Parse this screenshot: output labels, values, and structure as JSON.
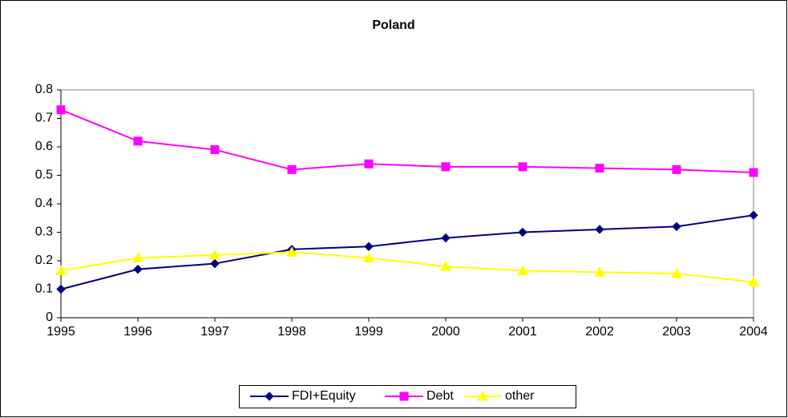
{
  "chart_data": {
    "type": "line",
    "title": "Poland",
    "categories": [
      "1995",
      "1996",
      "1997",
      "1998",
      "1999",
      "2000",
      "2001",
      "2002",
      "2003",
      "2004"
    ],
    "series": [
      {
        "name": "FDI+Equity",
        "color": "#000080",
        "marker": "diamond",
        "values": [
          0.1,
          0.17,
          0.19,
          0.24,
          0.25,
          0.28,
          0.3,
          0.31,
          0.32,
          0.36
        ]
      },
      {
        "name": "Debt",
        "color": "#ff00ff",
        "marker": "square",
        "values": [
          0.73,
          0.62,
          0.59,
          0.52,
          0.54,
          0.53,
          0.53,
          0.525,
          0.52,
          0.51
        ]
      },
      {
        "name": "other",
        "color": "#ffff00",
        "marker": "triangle",
        "values": [
          0.165,
          0.21,
          0.22,
          0.23,
          0.21,
          0.18,
          0.165,
          0.16,
          0.155,
          0.125
        ]
      }
    ],
    "ylim": [
      0,
      0.8
    ],
    "yticks": [
      0,
      0.1,
      0.2,
      0.3,
      0.4,
      0.5,
      0.6,
      0.7,
      0.8
    ],
    "grid": false,
    "legend": "bottom"
  }
}
